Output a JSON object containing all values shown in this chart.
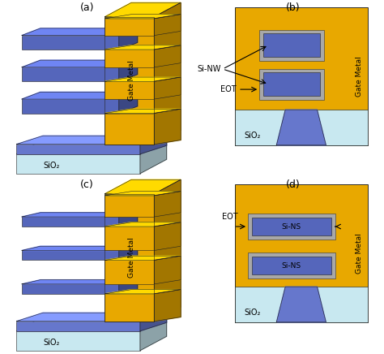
{
  "colors": {
    "gate_metal": "#E8A800",
    "gate_metal_dark": "#B07800",
    "gate_metal_top": "#F5CC50",
    "si_wire": "#5566BB",
    "si_wire_dark": "#3344AA",
    "si_wire_top": "#7788CC",
    "sio2_light": "#C8E8F0",
    "sio2_light_top": "#DDEEF8",
    "sio2_dark": "#6677CC",
    "sio2_dark_top": "#8899DD",
    "eot_gray": "#A8A8A8",
    "eot_gray_dark": "#888888",
    "fin_blue": "#6677BB",
    "background": "#FFFFFF"
  },
  "labels": {
    "a": "(a)",
    "b": "(b)",
    "c": "(c)",
    "d": "(d)",
    "sio2": "SiO₂",
    "gate_metal": "Gate Metal",
    "si_nw": "Si-NW",
    "eot": "EOT",
    "si_ns": "Si-NS"
  }
}
